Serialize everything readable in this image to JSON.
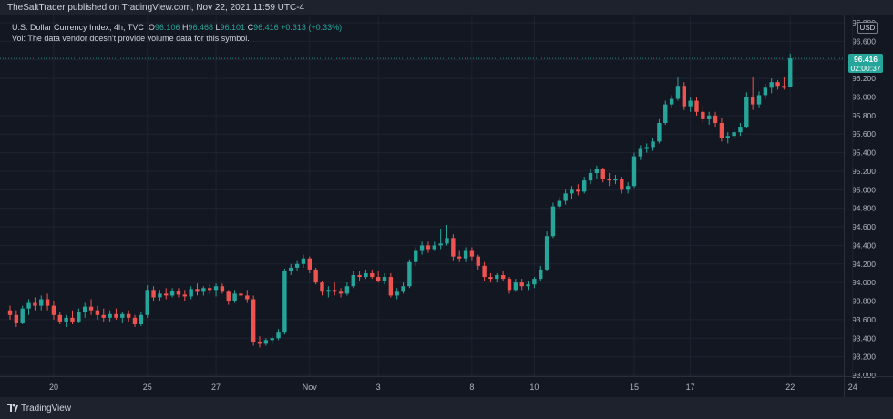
{
  "header": {
    "publisher_line": "TheSaltTrader published on TradingView.com, Nov 22, 2021 11:59 UTC-4"
  },
  "legend": {
    "symbol": "U.S. Dollar Currency Index, 4h, TVC",
    "o_label": "O",
    "o_value": "96.106",
    "h_label": "H",
    "h_value": "96.468",
    "l_label": "L",
    "l_value": "96.101",
    "c_label": "C",
    "c_value": "96.416",
    "change": "+0.313 (+0.33%)",
    "vol_note": "Vol: The data vendor doesn't provide volume data for this symbol."
  },
  "currency_badge": "USD",
  "last_price": {
    "price": "96.416",
    "countdown": "02:00:37"
  },
  "footer": {
    "brand": "TradingView"
  },
  "colors": {
    "background": "#131722",
    "grid": "#1f2330",
    "up": "#26a69a",
    "down": "#ef5350",
    "axis_text": "#b2b5be",
    "panel": "#1e222d"
  },
  "chart_data": {
    "type": "candlestick",
    "y_axis": {
      "min": 93.0,
      "max": 96.8,
      "ticks": [
        "93.000",
        "93.200",
        "93.400",
        "93.600",
        "93.800",
        "94.000",
        "94.200",
        "94.400",
        "94.600",
        "94.800",
        "95.000",
        "95.200",
        "95.400",
        "95.600",
        "95.800",
        "96.000",
        "96.200",
        "96.400",
        "96.600",
        "96.800"
      ]
    },
    "x_axis": {
      "labels": [
        {
          "label": "20",
          "bar": 7
        },
        {
          "label": "25",
          "bar": 22
        },
        {
          "label": "27",
          "bar": 33
        },
        {
          "label": "Nov",
          "bar": 48
        },
        {
          "label": "3",
          "bar": 59
        },
        {
          "label": "8",
          "bar": 74
        },
        {
          "label": "10",
          "bar": 84
        },
        {
          "label": "15",
          "bar": 100
        },
        {
          "label": "17",
          "bar": 109
        },
        {
          "label": "22",
          "bar": 125
        },
        {
          "label": "24",
          "bar": 135
        }
      ]
    },
    "grid": true,
    "bars": [
      {
        "o": 93.7,
        "h": 93.75,
        "l": 93.6,
        "c": 93.65
      },
      {
        "o": 93.65,
        "h": 93.7,
        "l": 93.52,
        "c": 93.56
      },
      {
        "o": 93.56,
        "h": 93.75,
        "l": 93.55,
        "c": 93.72
      },
      {
        "o": 93.72,
        "h": 93.82,
        "l": 93.65,
        "c": 93.78
      },
      {
        "o": 93.78,
        "h": 93.84,
        "l": 93.7,
        "c": 93.75
      },
      {
        "o": 93.75,
        "h": 93.86,
        "l": 93.7,
        "c": 93.82
      },
      {
        "o": 93.82,
        "h": 93.88,
        "l": 93.7,
        "c": 93.75
      },
      {
        "o": 93.75,
        "h": 93.8,
        "l": 93.6,
        "c": 93.65
      },
      {
        "o": 93.65,
        "h": 93.68,
        "l": 93.55,
        "c": 93.58
      },
      {
        "o": 93.58,
        "h": 93.65,
        "l": 93.52,
        "c": 93.62
      },
      {
        "o": 93.62,
        "h": 93.7,
        "l": 93.55,
        "c": 93.58
      },
      {
        "o": 93.58,
        "h": 93.72,
        "l": 93.56,
        "c": 93.68
      },
      {
        "o": 93.68,
        "h": 93.78,
        "l": 93.62,
        "c": 93.74
      },
      {
        "o": 93.74,
        "h": 93.82,
        "l": 93.65,
        "c": 93.7
      },
      {
        "o": 93.7,
        "h": 93.75,
        "l": 93.6,
        "c": 93.65
      },
      {
        "o": 93.65,
        "h": 93.72,
        "l": 93.58,
        "c": 93.62
      },
      {
        "o": 93.62,
        "h": 93.7,
        "l": 93.58,
        "c": 93.66
      },
      {
        "o": 93.66,
        "h": 93.72,
        "l": 93.6,
        "c": 93.62
      },
      {
        "o": 93.62,
        "h": 93.68,
        "l": 93.56,
        "c": 93.66
      },
      {
        "o": 93.66,
        "h": 93.7,
        "l": 93.58,
        "c": 93.62
      },
      {
        "o": 93.62,
        "h": 93.65,
        "l": 93.52,
        "c": 93.55
      },
      {
        "o": 93.55,
        "h": 93.68,
        "l": 93.53,
        "c": 93.65
      },
      {
        "o": 93.65,
        "h": 93.97,
        "l": 93.62,
        "c": 93.92
      },
      {
        "o": 93.92,
        "h": 93.96,
        "l": 93.8,
        "c": 93.84
      },
      {
        "o": 93.84,
        "h": 93.92,
        "l": 93.8,
        "c": 93.88
      },
      {
        "o": 93.88,
        "h": 93.94,
        "l": 93.82,
        "c": 93.86
      },
      {
        "o": 93.86,
        "h": 93.94,
        "l": 93.84,
        "c": 93.91
      },
      {
        "o": 93.91,
        "h": 93.94,
        "l": 93.84,
        "c": 93.87
      },
      {
        "o": 93.87,
        "h": 93.92,
        "l": 93.8,
        "c": 93.85
      },
      {
        "o": 93.85,
        "h": 93.96,
        "l": 93.82,
        "c": 93.93
      },
      {
        "o": 93.93,
        "h": 93.99,
        "l": 93.86,
        "c": 93.9
      },
      {
        "o": 93.9,
        "h": 93.96,
        "l": 93.86,
        "c": 93.94
      },
      {
        "o": 93.94,
        "h": 93.98,
        "l": 93.88,
        "c": 93.92
      },
      {
        "o": 93.92,
        "h": 93.99,
        "l": 93.85,
        "c": 93.96
      },
      {
        "o": 93.96,
        "h": 93.99,
        "l": 93.88,
        "c": 93.9
      },
      {
        "o": 93.9,
        "h": 93.92,
        "l": 93.76,
        "c": 93.8
      },
      {
        "o": 93.8,
        "h": 93.92,
        "l": 93.78,
        "c": 93.88
      },
      {
        "o": 93.88,
        "h": 93.94,
        "l": 93.82,
        "c": 93.86
      },
      {
        "o": 93.86,
        "h": 93.92,
        "l": 93.78,
        "c": 93.82
      },
      {
        "o": 93.82,
        "h": 93.86,
        "l": 93.32,
        "c": 93.36
      },
      {
        "o": 93.36,
        "h": 93.42,
        "l": 93.3,
        "c": 93.34
      },
      {
        "o": 93.34,
        "h": 93.4,
        "l": 93.32,
        "c": 93.38
      },
      {
        "o": 93.38,
        "h": 93.42,
        "l": 93.34,
        "c": 93.4
      },
      {
        "o": 93.4,
        "h": 93.5,
        "l": 93.38,
        "c": 93.46
      },
      {
        "o": 93.46,
        "h": 94.15,
        "l": 93.44,
        "c": 94.12
      },
      {
        "o": 94.12,
        "h": 94.2,
        "l": 94.08,
        "c": 94.16
      },
      {
        "o": 94.16,
        "h": 94.24,
        "l": 94.12,
        "c": 94.2
      },
      {
        "o": 94.2,
        "h": 94.3,
        "l": 94.16,
        "c": 94.26
      },
      {
        "o": 94.26,
        "h": 94.28,
        "l": 94.1,
        "c": 94.14
      },
      {
        "o": 94.14,
        "h": 94.16,
        "l": 93.98,
        "c": 94.0
      },
      {
        "o": 94.0,
        "h": 94.02,
        "l": 93.86,
        "c": 93.9
      },
      {
        "o": 93.9,
        "h": 93.96,
        "l": 93.84,
        "c": 93.92
      },
      {
        "o": 93.92,
        "h": 94.0,
        "l": 93.86,
        "c": 93.9
      },
      {
        "o": 93.9,
        "h": 93.94,
        "l": 93.84,
        "c": 93.88
      },
      {
        "o": 93.88,
        "h": 94.0,
        "l": 93.86,
        "c": 93.96
      },
      {
        "o": 93.96,
        "h": 94.12,
        "l": 93.94,
        "c": 94.08
      },
      {
        "o": 94.08,
        "h": 94.12,
        "l": 94.02,
        "c": 94.06
      },
      {
        "o": 94.06,
        "h": 94.14,
        "l": 94.04,
        "c": 94.1
      },
      {
        "o": 94.1,
        "h": 94.14,
        "l": 94.04,
        "c": 94.06
      },
      {
        "o": 94.06,
        "h": 94.12,
        "l": 94.0,
        "c": 94.02
      },
      {
        "o": 94.02,
        "h": 94.1,
        "l": 93.98,
        "c": 94.06
      },
      {
        "o": 94.06,
        "h": 94.1,
        "l": 93.84,
        "c": 93.86
      },
      {
        "o": 93.86,
        "h": 93.94,
        "l": 93.82,
        "c": 93.9
      },
      {
        "o": 93.9,
        "h": 94.0,
        "l": 93.88,
        "c": 93.96
      },
      {
        "o": 93.96,
        "h": 94.25,
        "l": 93.94,
        "c": 94.22
      },
      {
        "o": 94.22,
        "h": 94.38,
        "l": 94.18,
        "c": 94.34
      },
      {
        "o": 94.34,
        "h": 94.44,
        "l": 94.3,
        "c": 94.4
      },
      {
        "o": 94.4,
        "h": 94.44,
        "l": 94.32,
        "c": 94.36
      },
      {
        "o": 94.36,
        "h": 94.44,
        "l": 94.34,
        "c": 94.4
      },
      {
        "o": 94.4,
        "h": 94.58,
        "l": 94.36,
        "c": 94.42
      },
      {
        "o": 94.42,
        "h": 94.62,
        "l": 94.4,
        "c": 94.48
      },
      {
        "o": 94.48,
        "h": 94.52,
        "l": 94.24,
        "c": 94.28
      },
      {
        "o": 94.28,
        "h": 94.34,
        "l": 94.22,
        "c": 94.26
      },
      {
        "o": 94.26,
        "h": 94.38,
        "l": 94.22,
        "c": 94.34
      },
      {
        "o": 94.34,
        "h": 94.38,
        "l": 94.24,
        "c": 94.28
      },
      {
        "o": 94.28,
        "h": 94.3,
        "l": 94.14,
        "c": 94.18
      },
      {
        "o": 94.18,
        "h": 94.22,
        "l": 94.02,
        "c": 94.06
      },
      {
        "o": 94.06,
        "h": 94.1,
        "l": 94.0,
        "c": 94.04
      },
      {
        "o": 94.04,
        "h": 94.1,
        "l": 94.0,
        "c": 94.08
      },
      {
        "o": 94.08,
        "h": 94.12,
        "l": 94.02,
        "c": 94.04
      },
      {
        "o": 94.04,
        "h": 94.06,
        "l": 93.88,
        "c": 93.92
      },
      {
        "o": 93.92,
        "h": 94.04,
        "l": 93.9,
        "c": 94.0
      },
      {
        "o": 94.0,
        "h": 94.04,
        "l": 93.92,
        "c": 93.96
      },
      {
        "o": 93.96,
        "h": 94.02,
        "l": 93.92,
        "c": 93.98
      },
      {
        "o": 93.98,
        "h": 94.06,
        "l": 93.94,
        "c": 94.04
      },
      {
        "o": 94.04,
        "h": 94.18,
        "l": 94.02,
        "c": 94.14
      },
      {
        "o": 94.14,
        "h": 94.55,
        "l": 94.12,
        "c": 94.5
      },
      {
        "o": 94.5,
        "h": 94.86,
        "l": 94.48,
        "c": 94.82
      },
      {
        "o": 94.82,
        "h": 94.92,
        "l": 94.8,
        "c": 94.88
      },
      {
        "o": 94.88,
        "h": 95.0,
        "l": 94.84,
        "c": 94.96
      },
      {
        "o": 94.96,
        "h": 95.04,
        "l": 94.9,
        "c": 95.0
      },
      {
        "o": 95.0,
        "h": 95.06,
        "l": 94.94,
        "c": 94.98
      },
      {
        "o": 94.98,
        "h": 95.14,
        "l": 94.96,
        "c": 95.1
      },
      {
        "o": 95.1,
        "h": 95.22,
        "l": 95.06,
        "c": 95.18
      },
      {
        "o": 95.18,
        "h": 95.26,
        "l": 95.12,
        "c": 95.22
      },
      {
        "o": 95.22,
        "h": 95.24,
        "l": 95.08,
        "c": 95.12
      },
      {
        "o": 95.12,
        "h": 95.18,
        "l": 95.04,
        "c": 95.1
      },
      {
        "o": 95.1,
        "h": 95.16,
        "l": 95.06,
        "c": 95.12
      },
      {
        "o": 95.12,
        "h": 95.14,
        "l": 94.96,
        "c": 95.0
      },
      {
        "o": 95.0,
        "h": 95.08,
        "l": 94.96,
        "c": 95.04
      },
      {
        "o": 95.04,
        "h": 95.4,
        "l": 95.02,
        "c": 95.36
      },
      {
        "o": 95.36,
        "h": 95.48,
        "l": 95.32,
        "c": 95.44
      },
      {
        "o": 95.44,
        "h": 95.5,
        "l": 95.4,
        "c": 95.46
      },
      {
        "o": 95.46,
        "h": 95.56,
        "l": 95.42,
        "c": 95.52
      },
      {
        "o": 95.52,
        "h": 95.76,
        "l": 95.5,
        "c": 95.72
      },
      {
        "o": 95.72,
        "h": 95.96,
        "l": 95.7,
        "c": 95.92
      },
      {
        "o": 95.92,
        "h": 96.02,
        "l": 95.88,
        "c": 95.98
      },
      {
        "o": 95.98,
        "h": 96.22,
        "l": 95.96,
        "c": 96.12
      },
      {
        "o": 96.12,
        "h": 96.16,
        "l": 95.86,
        "c": 95.9
      },
      {
        "o": 95.9,
        "h": 96.0,
        "l": 95.84,
        "c": 95.96
      },
      {
        "o": 95.96,
        "h": 96.0,
        "l": 95.8,
        "c": 95.84
      },
      {
        "o": 95.84,
        "h": 95.9,
        "l": 95.72,
        "c": 95.76
      },
      {
        "o": 95.76,
        "h": 95.84,
        "l": 95.7,
        "c": 95.8
      },
      {
        "o": 95.8,
        "h": 95.84,
        "l": 95.68,
        "c": 95.72
      },
      {
        "o": 95.72,
        "h": 95.78,
        "l": 95.52,
        "c": 95.56
      },
      {
        "o": 95.56,
        "h": 95.62,
        "l": 95.5,
        "c": 95.58
      },
      {
        "o": 95.58,
        "h": 95.66,
        "l": 95.54,
        "c": 95.62
      },
      {
        "o": 95.62,
        "h": 95.72,
        "l": 95.58,
        "c": 95.68
      },
      {
        "o": 95.68,
        "h": 96.05,
        "l": 95.66,
        "c": 96.0
      },
      {
        "o": 96.0,
        "h": 96.22,
        "l": 95.86,
        "c": 95.92
      },
      {
        "o": 95.92,
        "h": 96.06,
        "l": 95.88,
        "c": 96.02
      },
      {
        "o": 96.02,
        "h": 96.14,
        "l": 95.98,
        "c": 96.1
      },
      {
        "o": 96.1,
        "h": 96.2,
        "l": 96.04,
        "c": 96.16
      },
      {
        "o": 96.16,
        "h": 96.18,
        "l": 96.08,
        "c": 96.12
      },
      {
        "o": 96.12,
        "h": 96.22,
        "l": 96.08,
        "c": 96.1
      },
      {
        "o": 96.106,
        "h": 96.468,
        "l": 96.101,
        "c": 96.416
      }
    ]
  }
}
